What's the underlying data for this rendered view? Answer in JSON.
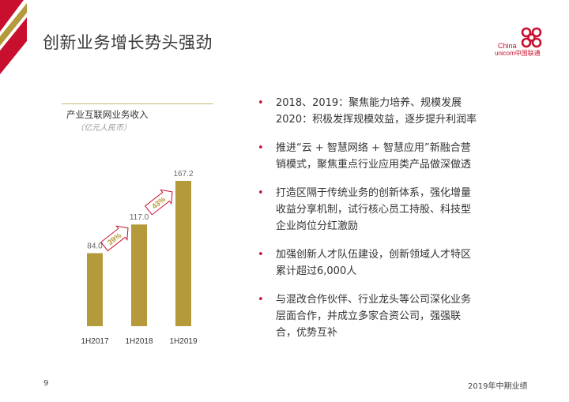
{
  "slide": {
    "title": "创新业务增长势头强劲",
    "page_number": "9",
    "footer_text": "2019年中期业绩"
  },
  "logo": {
    "line1": "China",
    "line2": "unicom中国联通",
    "color": "#c8102e"
  },
  "chart_data": {
    "type": "bar",
    "title": "产业互联网业务收入",
    "subtitle": "（亿元人民币）",
    "categories": [
      "1H2017",
      "1H2018",
      "1H2019"
    ],
    "values": [
      84.0,
      117.0,
      167.2
    ],
    "value_labels": [
      "84.0",
      "117.0",
      "167.2"
    ],
    "growth_labels": [
      "39%",
      "43%"
    ],
    "bar_color": "#b59a3c",
    "arrow_border_color": "#c8102e",
    "ylim": [
      0,
      167.2
    ]
  },
  "bullets": [
    {
      "lines": [
        "2018、2019：聚焦能力培养、规模发展",
        "2020：积极发挥规模效益，逐步提升利润率"
      ]
    },
    {
      "lines": [
        "推进“云 + 智慧网络 + 智慧应用”新融合营",
        "销模式，聚焦重点行业应用类产品做深做透"
      ]
    },
    {
      "lines": [
        "打造区隔于传统业务的创新体系，强化增量",
        "收益分享机制，试行核心员工持股、科技型",
        "企业岗位分红激励"
      ]
    },
    {
      "lines": [
        "加强创新人才队伍建设，创新领域人才特区",
        "累计超过6,000人"
      ]
    },
    {
      "lines": [
        "与混改合作伙伴、行业龙头等公司深化业务",
        "层面合作，并成立多家合资公司，强强联",
        "合，优势互补"
      ]
    }
  ],
  "colors": {
    "accent_red": "#c8102e",
    "gold": "#b59a3c"
  }
}
